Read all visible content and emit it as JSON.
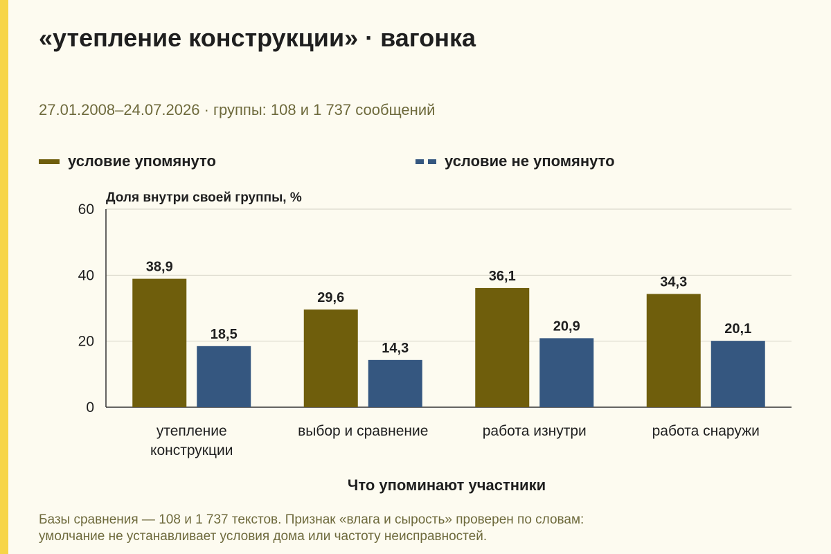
{
  "title": "«утепление конструкции» · вагонка",
  "subtitle": "27.01.2008–24.07.2026 · группы: 108 и 1 737 сообщений",
  "footnote": {
    "line1": "Базы сравнения — 108 и 1 737 текстов. Признак «влага и сырость» проверен по словам:",
    "line2": "умолчание не устанавливает условия дома или частоту неисправностей."
  },
  "colors": {
    "accent": "#f7d548",
    "series_mentioned": "#6f5e0c",
    "series_not_mentioned": "#355780",
    "text_muted": "#6e6a3c"
  },
  "chart_data": {
    "type": "bar",
    "title": "«утепление конструкции» · вагонка",
    "ylabel": "Доля внутри своей группы, %",
    "xlabel": "Что упоминают участники",
    "ylim": [
      0,
      60
    ],
    "yticks": [
      0,
      20,
      40,
      60
    ],
    "grid": true,
    "legend_position": "top-left",
    "categories": [
      [
        "утепление",
        "конструкции"
      ],
      [
        "выбор и сравнение"
      ],
      [
        "работа изнутри"
      ],
      [
        "работа снаружи"
      ]
    ],
    "series": [
      {
        "name": "условие упомянуто",
        "values": [
          38.9,
          29.6,
          36.1,
          34.3
        ],
        "labels": [
          "38,9",
          "29,6",
          "36,1",
          "34,3"
        ],
        "color": "#6f5e0c"
      },
      {
        "name": "условие не упомянуто",
        "values": [
          18.5,
          14.3,
          20.9,
          20.1
        ],
        "labels": [
          "18,5",
          "14,3",
          "20,9",
          "20,1"
        ],
        "color": "#355780"
      }
    ]
  }
}
